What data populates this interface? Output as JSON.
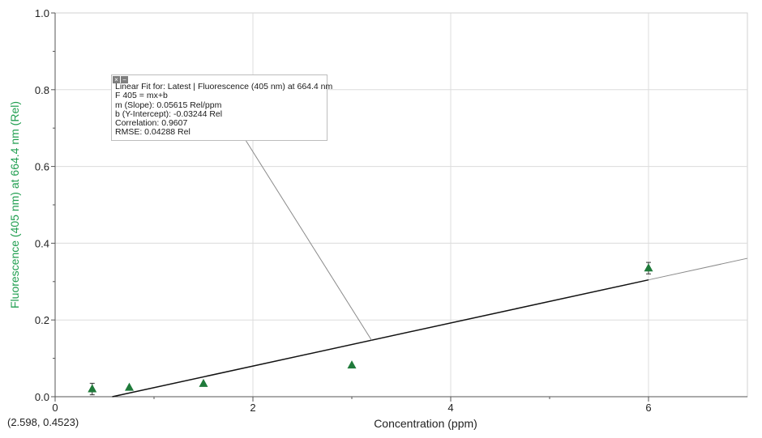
{
  "chart_data": {
    "type": "scatter",
    "xlabel": "Concentration (ppm)",
    "ylabel": "Fluorescence (405 nm) at 664.4 nm (Rel)",
    "xlim": [
      0,
      7
    ],
    "ylim": [
      0,
      1.0
    ],
    "x_ticks": [
      0,
      2,
      4,
      6
    ],
    "y_ticks": [
      0.0,
      0.2,
      0.4,
      0.6,
      0.8,
      1.0
    ],
    "x_tick_labels": [
      "0",
      "2",
      "4",
      "6"
    ],
    "y_tick_labels": [
      "0.0",
      "0.2",
      "0.4",
      "0.6",
      "0.8",
      "1.0"
    ],
    "grid": true,
    "marker_color": "#1f7a3a",
    "ylabel_color": "#1f9e4f",
    "series": [
      {
        "x": [
          0.375,
          0.75,
          1.5,
          3.0,
          6.0
        ],
        "y": [
          0.02,
          0.024,
          0.034,
          0.082,
          0.335
        ],
        "error": [
          0.015,
          0,
          0,
          0,
          0.015
        ]
      }
    ],
    "fit": {
      "slope": 0.05615,
      "intercept": -0.03244,
      "x_range_dark": [
        0.578,
        6.0
      ],
      "x_range_light": [
        6.0,
        7.0
      ]
    },
    "annotation": {
      "target_x": 3.2,
      "lines": [
        "Linear Fit for: Latest | Fluorescence (405 nm) at 664.4 nm",
        "F 405 = mx+b",
        "m (Slope): 0.05615 Rel/ppm",
        "b (Y-Intercept): -0.03244 Rel",
        "Correlation: 0.9607",
        "RMSE: 0.04288 Rel"
      ]
    }
  },
  "annotation_controls": [
    "×",
    "−"
  ],
  "cursor_readout": "(2.598, 0.4523)"
}
